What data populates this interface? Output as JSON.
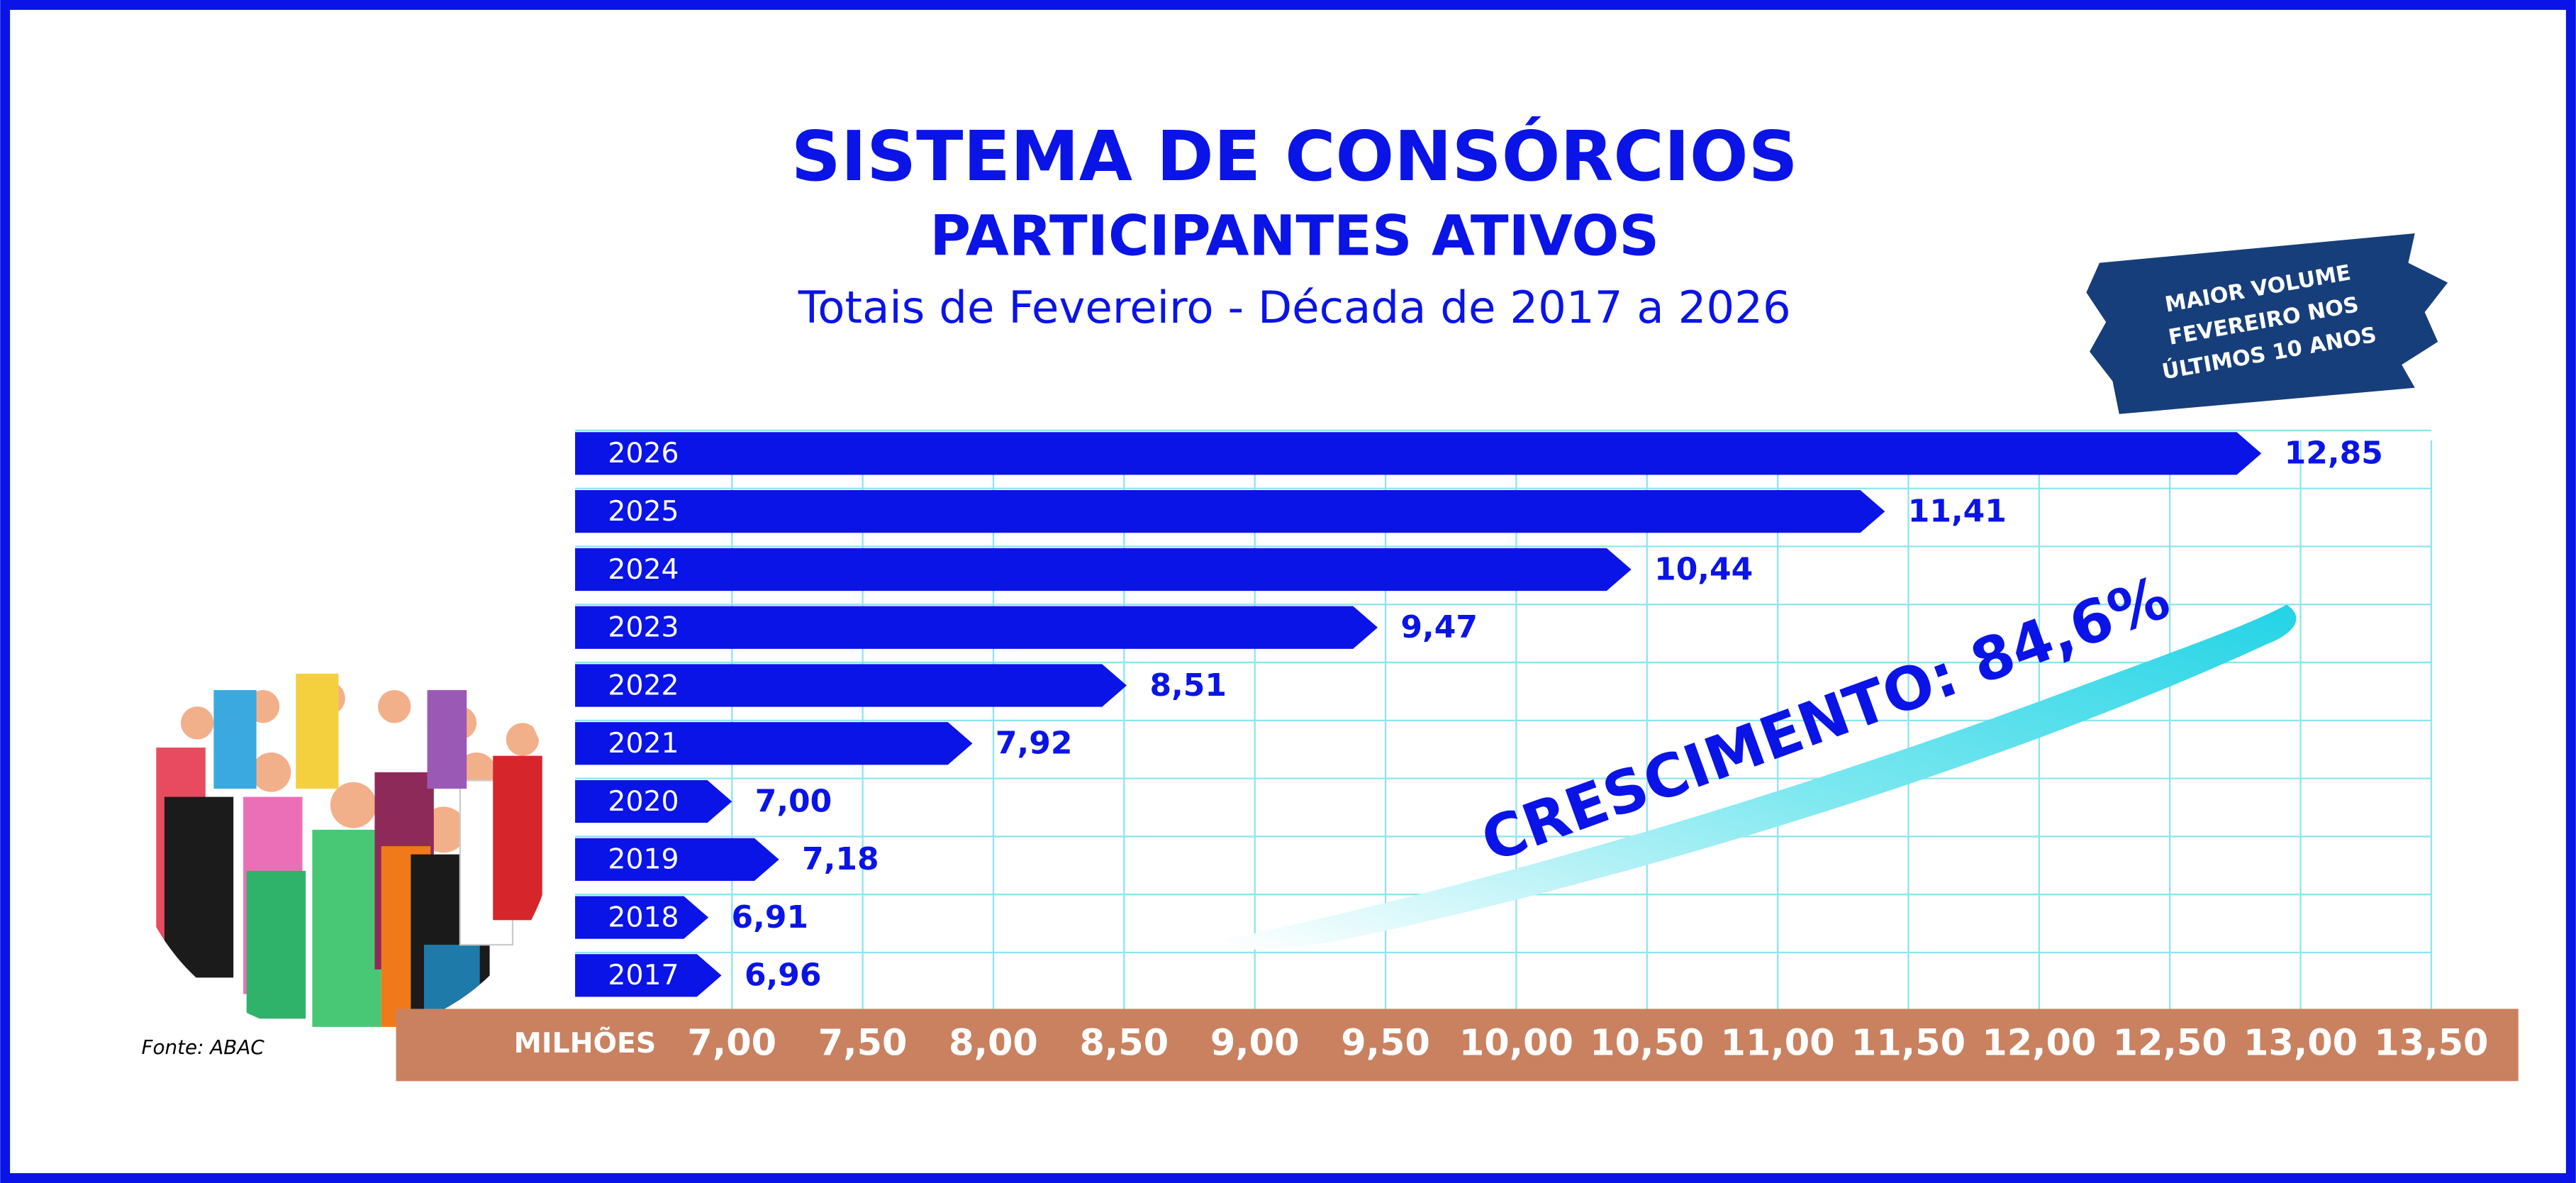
{
  "chart_data": {
    "type": "bar",
    "orientation": "horizontal",
    "title": "SISTEMA DE CONSÓRCIOS",
    "subtitle": "PARTICIPANTES ATIVOS",
    "caption": "Totais de Fevereiro - Década de 2017 a 2026",
    "categories": [
      "2026",
      "2025",
      "2024",
      "2023",
      "2022",
      "2021",
      "2020",
      "2019",
      "2018",
      "2017"
    ],
    "values": [
      12.85,
      11.41,
      10.44,
      9.47,
      8.51,
      7.92,
      7.0,
      7.18,
      6.91,
      6.96
    ],
    "value_labels": [
      "12,85",
      "11,41",
      "10,44",
      "9,47",
      "8,51",
      "7,92",
      "7,00",
      "7,18",
      "6,91",
      "6,96"
    ],
    "color": "#0a14e6",
    "xlim": [
      6.4,
      13.5
    ],
    "xticks": [
      {
        "value": 7,
        "label": "7,00"
      },
      {
        "value": 7.5,
        "label": "7,50"
      },
      {
        "value": 8,
        "label": "8,00"
      },
      {
        "value": 8.5,
        "label": "8,50"
      },
      {
        "value": 9,
        "label": "9,00"
      },
      {
        "value": 9.5,
        "label": "9,50"
      },
      {
        "value": 10,
        "label": "10,00"
      },
      {
        "value": 10.5,
        "label": "10,50"
      },
      {
        "value": 11,
        "label": "11,00"
      },
      {
        "value": 11.5,
        "label": "11,50"
      },
      {
        "value": 12,
        "label": "12,00"
      },
      {
        "value": 12.5,
        "label": "12,50"
      },
      {
        "value": 13,
        "label": "13,00"
      },
      {
        "value": 13.5,
        "label": "13,50"
      }
    ],
    "x_axis_label": "MILHÕES",
    "grid": true,
    "badge": [
      "MAIOR VOLUME",
      "FEVEREIRO NOS",
      "ÚLTIMOS 10 ANOS"
    ],
    "growth_annotation": "CRESCIMENTO: 84,6%",
    "source": "Fonte: ABAC"
  }
}
